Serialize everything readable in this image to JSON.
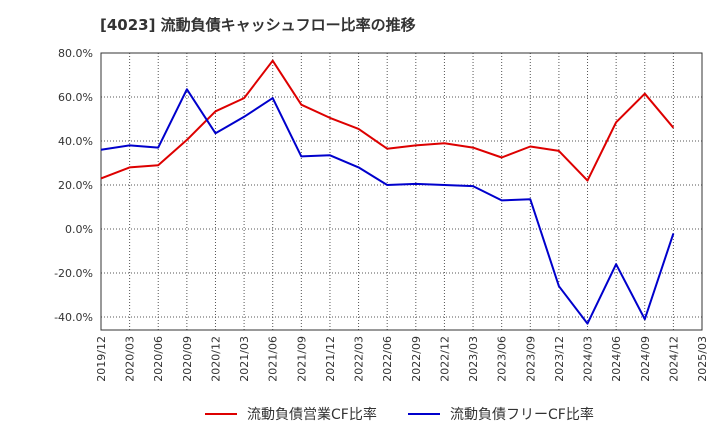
{
  "title": "[4023]  流動負債キャッシュフロー比率の推移",
  "colors": {
    "series1": "#dd0000",
    "series2": "#0000cc",
    "grid": "#555555",
    "axis": "#333333"
  },
  "chart_data": {
    "type": "line",
    "title": "[4023]  流動負債キャッシュフロー比率の推移",
    "xlabel": "",
    "ylabel": "",
    "ylim": [
      -46,
      80
    ],
    "y_ticks": [
      "80.0%",
      "60.0%",
      "40.0%",
      "20.0%",
      "0.0%",
      "-20.0%",
      "-40.0%"
    ],
    "y_tick_values": [
      80,
      60,
      40,
      20,
      0,
      -20,
      -40
    ],
    "x_ticks": [
      "2019/12",
      "2020/03",
      "2020/06",
      "2020/09",
      "2020/12",
      "2021/03",
      "2021/06",
      "2021/09",
      "2021/12",
      "2022/03",
      "2022/06",
      "2022/09",
      "2022/12",
      "2023/03",
      "2023/06",
      "2023/09",
      "2023/12",
      "2024/03",
      "2024/06",
      "2024/09",
      "2024/12",
      "2025/03"
    ],
    "grid": true,
    "legend_position": "bottom",
    "series": [
      {
        "name": "流動負債営業CF比率",
        "values": [
          23.0,
          28.0,
          29.0,
          40.5,
          53.5,
          59.5,
          76.5,
          56.5,
          50.5,
          45.5,
          36.5,
          38.0,
          39.0,
          37.0,
          32.5,
          37.5,
          35.5,
          22.0,
          48.5,
          61.5,
          46.0,
          null
        ]
      },
      {
        "name": "流動負債フリーCF比率",
        "values": [
          36.0,
          38.0,
          37.0,
          63.5,
          43.5,
          51.0,
          59.5,
          33.0,
          33.5,
          28.0,
          20.0,
          20.5,
          20.0,
          19.5,
          13.0,
          13.5,
          -26.0,
          -43.0,
          -16.0,
          -41.0,
          -2.0,
          null
        ]
      }
    ]
  }
}
